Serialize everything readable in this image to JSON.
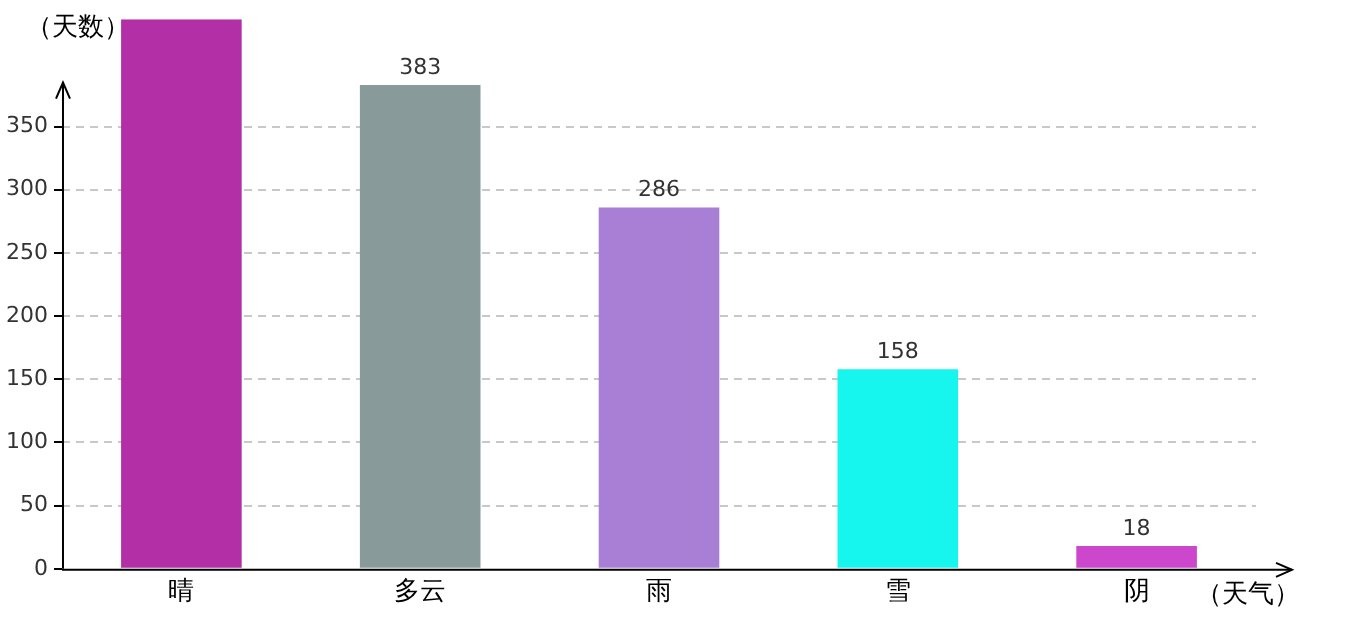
{
  "chart_data": {
    "type": "bar",
    "ylabel": "（天数）",
    "xlabel": "（天气）",
    "categories": [
      "晴",
      "多云",
      "雨",
      "雪",
      "阴"
    ],
    "values": [
      435,
      383,
      286,
      158,
      18
    ],
    "colors": [
      "#b32fa6",
      "#889a9a",
      "#a87fd4",
      "#17f5ef",
      "#cc47cc"
    ],
    "value_labels": [
      null,
      "383",
      "286",
      "158",
      "18"
    ],
    "ylim": [
      0,
      435
    ],
    "yticks": [
      0,
      50,
      100,
      150,
      200,
      250,
      300,
      350
    ],
    "grid": "y",
    "legend": false
  }
}
